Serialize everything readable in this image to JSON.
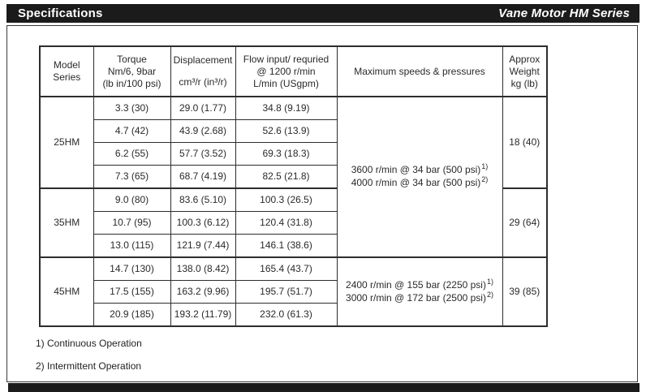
{
  "header": {
    "left_title": "Specifications",
    "right_title": "Vane Motor HM Series",
    "bar_color": "#1b1b1b"
  },
  "table": {
    "headers": {
      "model": [
        "Model",
        "Series"
      ],
      "torque": [
        "Torque",
        "Nm/6, 9bar",
        "(lb in/100 psi)"
      ],
      "displacement": [
        "Displacement",
        "cm³/r (in³/r)"
      ],
      "flow": [
        "Flow input/ requried",
        "@ 1200 r/min",
        "L/min (USgpm)"
      ],
      "speeds": "Maximum speeds & pressures",
      "weight": [
        "Approx",
        "Weight",
        "kg (lb)"
      ]
    },
    "groups": [
      {
        "model": "25HM",
        "weight": "18 (40)",
        "rows": [
          {
            "torque": "3.3 (30)",
            "displacement": "29.0 (1.77)",
            "flow": "34.8 (9.19)"
          },
          {
            "torque": "4.7 (42)",
            "displacement": "43.9 (2.68)",
            "flow": "52.6 (13.9)"
          },
          {
            "torque": "6.2 (55)",
            "displacement": "57.7 (3.52)",
            "flow": "69.3 (18.3)"
          },
          {
            "torque": "7.3 (65)",
            "displacement": "68.7 (4.19)",
            "flow": "82.5 (21.8)"
          }
        ]
      },
      {
        "model": "35HM",
        "weight": "29 (64)",
        "rows": [
          {
            "torque": "9.0 (80)",
            "displacement": "83.6 (5.10)",
            "flow": "100.3 (26.5)"
          },
          {
            "torque": "10.7 (95)",
            "displacement": "100.3 (6.12)",
            "flow": "120.4 (31.8)"
          },
          {
            "torque": "13.0 (115)",
            "displacement": "121.9 (7.44)",
            "flow": "146.1 (38.6)"
          }
        ]
      },
      {
        "model": "45HM",
        "weight": "39 (85)",
        "rows": [
          {
            "torque": "14.7 (130)",
            "displacement": "138.0 (8.42)",
            "flow": "165.4 (43.7)"
          },
          {
            "torque": "17.5 (155)",
            "displacement": "163.2 (9.96)",
            "flow": "195.7 (51.7)"
          },
          {
            "torque": "20.9 (185)",
            "displacement": "193.2 (11.79)",
            "flow": "232.0 (61.3)"
          }
        ]
      }
    ],
    "speeds": [
      {
        "lines": [
          {
            "text": "3600 r/min @ 34 bar (500 psi)",
            "sup": "1)"
          },
          {
            "text": "4000 r/min @ 34 bar (500 psi)",
            "sup": "2)"
          }
        ]
      },
      {
        "lines": [
          {
            "text": "2400 r/min @ 155 bar (2250 psi)",
            "sup": "1)"
          },
          {
            "text": "3000 r/min @ 172 bar (2500 psi)",
            "sup": "2)"
          }
        ]
      }
    ]
  },
  "footnotes": [
    "1) Continuous Operation",
    "2) Intermittent Operation"
  ]
}
